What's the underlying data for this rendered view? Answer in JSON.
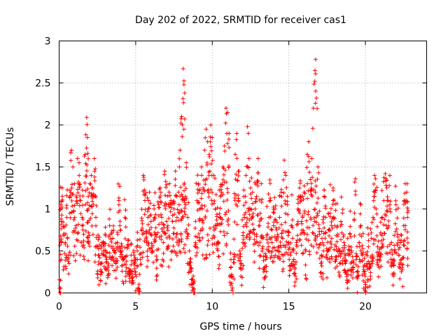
{
  "chart_data": {
    "type": "scatter",
    "title": "Day 202 of 2022, SRMTID for receiver cas1",
    "xlabel": "GPS time / hours",
    "ylabel": "SRMTID / TECUs",
    "xlim": [
      0,
      24
    ],
    "ylim": [
      0,
      3
    ],
    "xticks": [
      0,
      5,
      10,
      15,
      20
    ],
    "xtick_labels": [
      "0",
      "5",
      "10",
      "15",
      "20"
    ],
    "yticks": [
      0,
      0.5,
      1,
      1.5,
      2,
      2.5,
      3
    ],
    "ytick_labels": [
      "0",
      "0.5",
      "1",
      "1.5",
      "2",
      "2.5",
      "3"
    ],
    "grid": true,
    "marker": "+",
    "color": "#ff0000",
    "series": [
      {
        "name": "cas1",
        "points": [
          [
            0.05,
            0.0
          ],
          [
            0.1,
            1.05
          ],
          [
            0.15,
            0.85
          ],
          [
            0.2,
            1.25
          ],
          [
            0.3,
            0.7
          ],
          [
            0.4,
            0.6
          ],
          [
            0.5,
            0.9
          ],
          [
            0.6,
            0.45
          ],
          [
            0.7,
            0.95
          ],
          [
            0.8,
            1.7
          ],
          [
            0.9,
            1.5
          ],
          [
            1.0,
            1.3
          ],
          [
            1.1,
            0.8
          ],
          [
            1.2,
            1.6
          ],
          [
            1.3,
            1.55
          ],
          [
            1.4,
            1.1
          ],
          [
            1.5,
            0.9
          ],
          [
            1.6,
            0.7
          ],
          [
            1.7,
            1.65
          ],
          [
            1.8,
            2.09
          ],
          [
            1.85,
            1.85
          ],
          [
            1.9,
            1.0
          ],
          [
            2.0,
            1.3
          ],
          [
            2.1,
            1.4
          ],
          [
            2.2,
            1.25
          ],
          [
            2.3,
            1.6
          ],
          [
            2.4,
            0.9
          ],
          [
            2.5,
            0.55
          ],
          [
            2.6,
            0.45
          ],
          [
            2.7,
            0.35
          ],
          [
            2.8,
            0.6
          ],
          [
            2.9,
            0.5
          ],
          [
            3.0,
            0.7
          ],
          [
            3.1,
            0.4
          ],
          [
            3.2,
            0.3
          ],
          [
            3.3,
            0.8
          ],
          [
            3.4,
            0.55
          ],
          [
            3.5,
            0.65
          ],
          [
            3.6,
            0.5
          ],
          [
            3.7,
            0.35
          ],
          [
            3.8,
            0.6
          ],
          [
            3.9,
            1.1
          ],
          [
            4.0,
            0.75
          ],
          [
            4.1,
            0.5
          ],
          [
            4.2,
            0.4
          ],
          [
            4.3,
            0.9
          ],
          [
            4.4,
            0.3
          ],
          [
            4.5,
            0.55
          ],
          [
            4.6,
            0.2
          ],
          [
            4.7,
            0.45
          ],
          [
            4.8,
            0.15
          ],
          [
            4.9,
            0.35
          ],
          [
            5.0,
            0.25
          ],
          [
            5.1,
            0.5
          ],
          [
            5.2,
            0.05
          ],
          [
            5.3,
            0.4
          ],
          [
            5.4,
            0.75
          ],
          [
            5.5,
            1.4
          ],
          [
            5.6,
            1.1
          ],
          [
            5.7,
            0.6
          ],
          [
            5.8,
            0.9
          ],
          [
            5.9,
            1.2
          ],
          [
            6.0,
            0.85
          ],
          [
            6.1,
            0.5
          ],
          [
            6.2,
            1.0
          ],
          [
            6.3,
            0.7
          ],
          [
            6.4,
            0.4
          ],
          [
            6.5,
            1.05
          ],
          [
            6.6,
            1.25
          ],
          [
            6.7,
            0.9
          ],
          [
            6.8,
            0.6
          ],
          [
            6.9,
            1.45
          ],
          [
            7.0,
            1.05
          ],
          [
            7.1,
            0.8
          ],
          [
            7.2,
            1.3
          ],
          [
            7.3,
            1.1
          ],
          [
            7.4,
            0.85
          ],
          [
            7.5,
            1.0
          ],
          [
            7.6,
            1.45
          ],
          [
            7.7,
            0.9
          ],
          [
            7.8,
            1.2
          ],
          [
            7.9,
            1.7
          ],
          [
            8.0,
            2.1
          ],
          [
            8.05,
            2.0
          ],
          [
            8.1,
            2.67
          ],
          [
            8.15,
            2.48
          ],
          [
            8.2,
            2.38
          ],
          [
            8.3,
            1.55
          ],
          [
            8.4,
            0.9
          ],
          [
            8.5,
            0.5
          ],
          [
            8.6,
            0.3
          ],
          [
            8.7,
            0.1
          ],
          [
            8.8,
            0.05
          ],
          [
            8.9,
            0.6
          ],
          [
            9.0,
            1.1
          ],
          [
            9.1,
            1.3
          ],
          [
            9.2,
            1.0
          ],
          [
            9.3,
            1.5
          ],
          [
            9.4,
            1.25
          ],
          [
            9.5,
            1.7
          ],
          [
            9.6,
            1.95
          ],
          [
            9.7,
            1.8
          ],
          [
            9.8,
            1.65
          ],
          [
            9.9,
            2.0
          ],
          [
            10.0,
            1.85
          ],
          [
            10.1,
            1.4
          ],
          [
            10.2,
            1.0
          ],
          [
            10.3,
            0.8
          ],
          [
            10.4,
            0.6
          ],
          [
            10.5,
            0.9
          ],
          [
            10.6,
            1.2
          ],
          [
            10.7,
            1.5
          ],
          [
            10.8,
            1.75
          ],
          [
            10.9,
            2.2
          ],
          [
            11.0,
            2.15
          ],
          [
            11.1,
            1.9
          ],
          [
            11.2,
            0.3
          ],
          [
            11.3,
            0.2
          ],
          [
            11.4,
            0.4
          ],
          [
            11.5,
            1.65
          ],
          [
            11.6,
            1.9
          ],
          [
            11.7,
            1.45
          ],
          [
            11.8,
            0.5
          ],
          [
            11.9,
            0.35
          ],
          [
            12.0,
            0.6
          ],
          [
            12.1,
            0.9
          ],
          [
            12.2,
            1.4
          ],
          [
            12.3,
            1.98
          ],
          [
            12.4,
            1.6
          ],
          [
            12.5,
            1.25
          ],
          [
            12.6,
            0.9
          ],
          [
            12.7,
            0.75
          ],
          [
            12.8,
            1.0
          ],
          [
            12.9,
            1.15
          ],
          [
            13.0,
            1.6
          ],
          [
            13.1,
            0.8
          ],
          [
            13.2,
            1.3
          ],
          [
            13.3,
            0.55
          ],
          [
            13.4,
            0.3
          ],
          [
            13.5,
            0.4
          ],
          [
            13.6,
            0.7
          ],
          [
            13.7,
            0.9
          ],
          [
            13.8,
            1.1
          ],
          [
            13.9,
            0.6
          ],
          [
            14.0,
            0.8
          ],
          [
            14.1,
            1.0
          ],
          [
            14.2,
            0.75
          ],
          [
            14.3,
            0.55
          ],
          [
            14.4,
            0.9
          ],
          [
            14.5,
            1.2
          ],
          [
            14.6,
            0.65
          ],
          [
            14.7,
            1.58
          ],
          [
            14.8,
            1.4
          ],
          [
            14.9,
            1.05
          ],
          [
            15.0,
            0.6
          ],
          [
            15.1,
            0.45
          ],
          [
            15.2,
            0.8
          ],
          [
            15.3,
            0.5
          ],
          [
            15.4,
            0.3
          ],
          [
            15.5,
            0.6
          ],
          [
            15.6,
            1.0
          ],
          [
            15.7,
            1.25
          ],
          [
            15.8,
            1.1
          ],
          [
            15.9,
            0.9
          ],
          [
            16.0,
            1.2
          ],
          [
            16.1,
            0.5
          ],
          [
            16.2,
            1.65
          ],
          [
            16.3,
            1.8
          ],
          [
            16.4,
            1.35
          ],
          [
            16.5,
            1.6
          ],
          [
            16.6,
            2.2
          ],
          [
            16.7,
            2.52
          ],
          [
            16.75,
            2.78
          ],
          [
            16.8,
            2.32
          ],
          [
            16.9,
            1.5
          ],
          [
            17.0,
            0.7
          ],
          [
            17.1,
            0.35
          ],
          [
            17.2,
            0.6
          ],
          [
            17.3,
            1.15
          ],
          [
            17.4,
            0.9
          ],
          [
            17.5,
            0.5
          ],
          [
            17.6,
            0.75
          ],
          [
            17.7,
            0.95
          ],
          [
            17.8,
            0.65
          ],
          [
            17.9,
            1.1
          ],
          [
            18.0,
            0.8
          ],
          [
            18.1,
            0.55
          ],
          [
            18.2,
            0.7
          ],
          [
            18.3,
            0.5
          ],
          [
            18.4,
            0.85
          ],
          [
            18.5,
            0.95
          ],
          [
            18.6,
            0.6
          ],
          [
            18.7,
            0.35
          ],
          [
            18.8,
            0.15
          ],
          [
            18.9,
            0.45
          ],
          [
            19.0,
            0.7
          ],
          [
            19.1,
            0.5
          ],
          [
            19.2,
            0.3
          ],
          [
            19.3,
            1.32
          ],
          [
            19.4,
            0.4
          ],
          [
            19.5,
            0.2
          ],
          [
            19.6,
            0.6
          ],
          [
            19.7,
            0.8
          ],
          [
            19.8,
            0.45
          ],
          [
            19.9,
            0.25
          ],
          [
            20.0,
            0.1
          ],
          [
            20.1,
            0.35
          ],
          [
            20.2,
            0.55
          ],
          [
            20.3,
            0.3
          ],
          [
            20.4,
            0.65
          ],
          [
            20.5,
            0.9
          ],
          [
            20.6,
            1.4
          ],
          [
            20.7,
            1.0
          ],
          [
            20.8,
            0.55
          ],
          [
            20.9,
            0.4
          ],
          [
            21.0,
            0.7
          ],
          [
            21.1,
            0.9
          ],
          [
            21.2,
            1.1
          ],
          [
            21.3,
            1.42
          ],
          [
            21.4,
            1.25
          ],
          [
            21.5,
            0.8
          ],
          [
            21.6,
            1.0
          ],
          [
            21.7,
            0.6
          ],
          [
            21.8,
            0.35
          ],
          [
            21.9,
            0.5
          ],
          [
            22.0,
            1.05
          ],
          [
            22.1,
            0.7
          ],
          [
            22.2,
            0.45
          ],
          [
            22.3,
            0.6
          ],
          [
            22.4,
            0.3
          ],
          [
            22.5,
            0.8
          ],
          [
            22.6,
            1.3
          ],
          [
            22.7,
            1.2
          ],
          [
            22.75,
            0.9
          ]
        ]
      }
    ],
    "density_seed": 202
  }
}
